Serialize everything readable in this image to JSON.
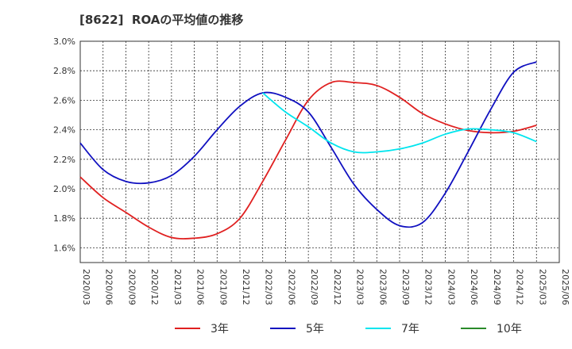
{
  "chart_data": {
    "type": "line",
    "title": "[8622]  ROAの平均値の推移",
    "xlabel": "",
    "ylabel": "",
    "ylim": [
      1.5,
      3.0
    ],
    "y_ticks": [
      1.6,
      1.8,
      2.0,
      2.2,
      2.4,
      2.6,
      2.8,
      3.0
    ],
    "y_tick_labels": [
      "1.6%",
      "1.8%",
      "2.0%",
      "2.2%",
      "2.4%",
      "2.6%",
      "2.8%",
      "3.0%"
    ],
    "x_tick_labels": [
      "2020/03",
      "2020/06",
      "2020/09",
      "2020/12",
      "2021/03",
      "2021/06",
      "2021/09",
      "2021/12",
      "2022/03",
      "2022/06",
      "2022/09",
      "2022/12",
      "2023/03",
      "2023/06",
      "2023/09",
      "2023/12",
      "2024/03",
      "2024/06",
      "2024/09",
      "2024/12",
      "2025/03",
      "2025/06"
    ],
    "grid": true,
    "legend_position": "bottom",
    "series": [
      {
        "name": "3年",
        "color": "#e02020",
        "values": [
          2.08,
          1.94,
          1.84,
          1.74,
          1.67,
          1.665,
          1.695,
          1.8,
          2.05,
          2.33,
          2.6,
          2.72,
          2.72,
          2.7,
          2.62,
          2.51,
          2.44,
          2.395,
          2.38,
          2.39,
          2.43,
          null
        ]
      },
      {
        "name": "5年",
        "color": "#1010c0",
        "values": [
          2.31,
          2.13,
          2.05,
          2.04,
          2.09,
          2.22,
          2.4,
          2.56,
          2.65,
          2.62,
          2.52,
          2.28,
          2.03,
          1.86,
          1.75,
          1.77,
          1.97,
          2.25,
          2.54,
          2.79,
          2.86,
          null
        ]
      },
      {
        "name": "7年",
        "color": "#00e5ee",
        "values": [
          null,
          null,
          null,
          null,
          null,
          null,
          null,
          null,
          2.65,
          2.52,
          2.42,
          2.31,
          2.25,
          2.25,
          2.27,
          2.31,
          2.37,
          2.405,
          2.4,
          2.38,
          2.32,
          null
        ]
      },
      {
        "name": "10年",
        "color": "#2a8a2a",
        "values": [
          null,
          null,
          null,
          null,
          null,
          null,
          null,
          null,
          null,
          null,
          null,
          null,
          null,
          null,
          null,
          null,
          null,
          null,
          null,
          null,
          null,
          null
        ]
      }
    ]
  }
}
